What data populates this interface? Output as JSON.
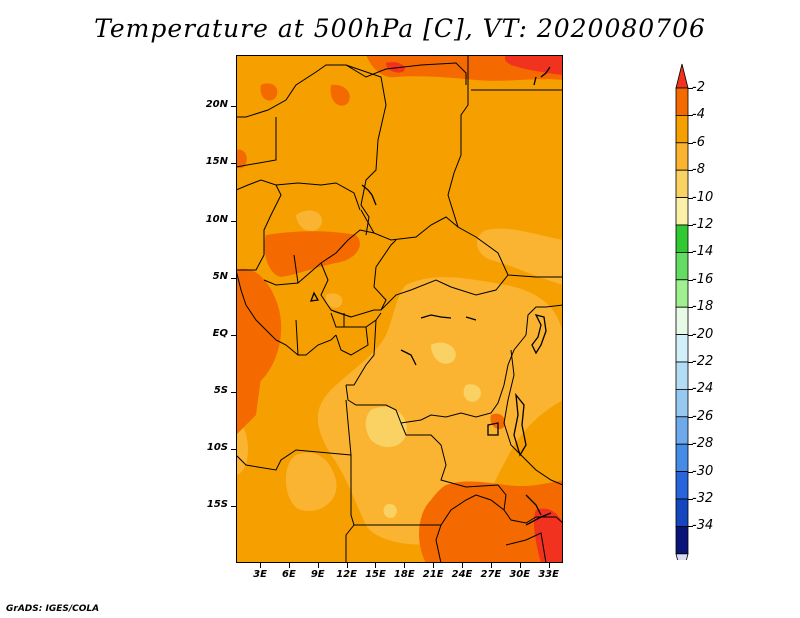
{
  "title": "Temperature at 500hPa [C], VT: 2020080706",
  "footer": "GrADS: IGES/COLA",
  "map": {
    "lat_labels": [
      "20N",
      "15N",
      "10N",
      "5N",
      "EQ",
      "5S",
      "10S",
      "15S"
    ],
    "lon_labels": [
      "3E",
      "6E",
      "9E",
      "12E",
      "15E",
      "18E",
      "21E",
      "24E",
      "27E",
      "30E",
      "33E"
    ],
    "lat_range": [
      -20,
      24.5
    ],
    "lon_range": [
      0.5,
      34.5
    ],
    "lat_ticks": [
      20,
      15,
      10,
      5,
      0,
      -5,
      -10,
      -15
    ],
    "lon_ticks": [
      3,
      6,
      9,
      12,
      15,
      18,
      21,
      24,
      27,
      30,
      33
    ]
  },
  "colorbar": {
    "labels": [
      "-2",
      "-4",
      "-6",
      "-8",
      "-10",
      "-12",
      "-14",
      "-16",
      "-18",
      "-20",
      "-22",
      "-24",
      "-26",
      "-28",
      "-30",
      "-32",
      "-34"
    ],
    "colors": [
      "#f0321e",
      "#f56a00",
      "#f5a000",
      "#fab432",
      "#fad264",
      "#faf0aa",
      "#32c832",
      "#64dc64",
      "#a0f090",
      "#e6fae6",
      "#d2f0fa",
      "#b4dcf5",
      "#96c8f0",
      "#6eaaeb",
      "#468ce6",
      "#2864dc",
      "#1446be",
      "#0a1478",
      "#dcdcf5"
    ]
  }
}
